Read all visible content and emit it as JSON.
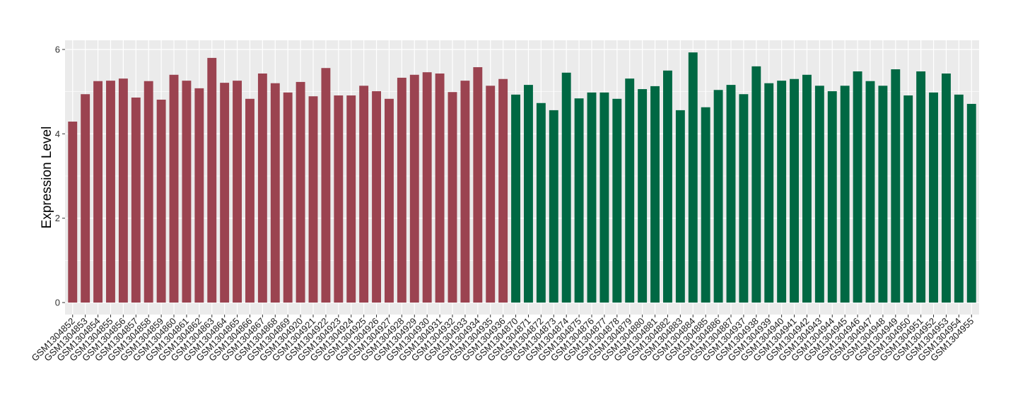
{
  "chart_data": {
    "type": "bar",
    "title": "",
    "xlabel": "",
    "ylabel": "Expression Level",
    "ylim": [
      0,
      6.3
    ],
    "yticks": [
      0,
      2,
      4,
      6
    ],
    "grid": true,
    "colors": {
      "group1": "#9B4350",
      "group2": "#006843",
      "panel": "#EBEBEB",
      "grid": "#FFFFFF"
    },
    "categories": [
      "GSM1304852",
      "GSM1304853",
      "GSM1304854",
      "GSM1304855",
      "GSM1304856",
      "GSM1304857",
      "GSM1304858",
      "GSM1304859",
      "GSM1304860",
      "GSM1304861",
      "GSM1304862",
      "GSM1304863",
      "GSM1304864",
      "GSM1304865",
      "GSM1304866",
      "GSM1304867",
      "GSM1304868",
      "GSM1304869",
      "GSM1304920",
      "GSM1304921",
      "GSM1304922",
      "GSM1304923",
      "GSM1304924",
      "GSM1304925",
      "GSM1304926",
      "GSM1304927",
      "GSM1304928",
      "GSM1304929",
      "GSM1304930",
      "GSM1304931",
      "GSM1304932",
      "GSM1304933",
      "GSM1304934",
      "GSM1304935",
      "GSM1304936",
      "GSM1304870",
      "GSM1304871",
      "GSM1304872",
      "GSM1304873",
      "GSM1304874",
      "GSM1304875",
      "GSM1304876",
      "GSM1304877",
      "GSM1304878",
      "GSM1304879",
      "GSM1304880",
      "GSM1304881",
      "GSM1304882",
      "GSM1304883",
      "GSM1304884",
      "GSM1304885",
      "GSM1304886",
      "GSM1304887",
      "GSM1304937",
      "GSM1304938",
      "GSM1304939",
      "GSM1304940",
      "GSM1304941",
      "GSM1304942",
      "GSM1304943",
      "GSM1304944",
      "GSM1304945",
      "GSM1304946",
      "GSM1304947",
      "GSM1304948",
      "GSM1304949",
      "GSM1304950",
      "GSM1304951",
      "GSM1304952",
      "GSM1304953",
      "GSM1304954",
      "GSM1304955"
    ],
    "values": [
      4.29,
      4.94,
      5.25,
      5.26,
      5.31,
      4.86,
      5.25,
      4.81,
      5.4,
      5.26,
      5.08,
      5.8,
      5.21,
      5.26,
      4.83,
      5.43,
      5.2,
      4.98,
      5.23,
      4.89,
      5.56,
      4.91,
      4.91,
      5.14,
      5.01,
      4.83,
      5.33,
      5.4,
      5.46,
      5.43,
      4.99,
      5.26,
      5.58,
      5.14,
      5.3,
      4.93,
      5.16,
      4.73,
      4.56,
      5.45,
      4.84,
      4.98,
      4.98,
      4.83,
      5.31,
      5.06,
      5.13,
      5.5,
      4.56,
      5.93,
      4.63,
      5.04,
      5.16,
      4.94,
      5.6,
      5.2,
      5.26,
      5.3,
      5.4,
      5.14,
      5.01,
      5.14,
      5.48,
      5.25,
      5.14,
      5.53,
      4.91,
      5.48,
      4.98,
      5.43,
      4.93,
      4.71
    ],
    "groups": [
      "group1",
      "group1",
      "group1",
      "group1",
      "group1",
      "group1",
      "group1",
      "group1",
      "group1",
      "group1",
      "group1",
      "group1",
      "group1",
      "group1",
      "group1",
      "group1",
      "group1",
      "group1",
      "group1",
      "group1",
      "group1",
      "group1",
      "group1",
      "group1",
      "group1",
      "group1",
      "group1",
      "group1",
      "group1",
      "group1",
      "group1",
      "group1",
      "group1",
      "group1",
      "group1",
      "group2",
      "group2",
      "group2",
      "group2",
      "group2",
      "group2",
      "group2",
      "group2",
      "group2",
      "group2",
      "group2",
      "group2",
      "group2",
      "group2",
      "group2",
      "group2",
      "group2",
      "group2",
      "group2",
      "group2",
      "group2",
      "group2",
      "group2",
      "group2",
      "group2",
      "group2",
      "group2",
      "group2",
      "group2",
      "group2",
      "group2",
      "group2",
      "group2",
      "group2",
      "group2",
      "group2",
      "group2"
    ]
  }
}
